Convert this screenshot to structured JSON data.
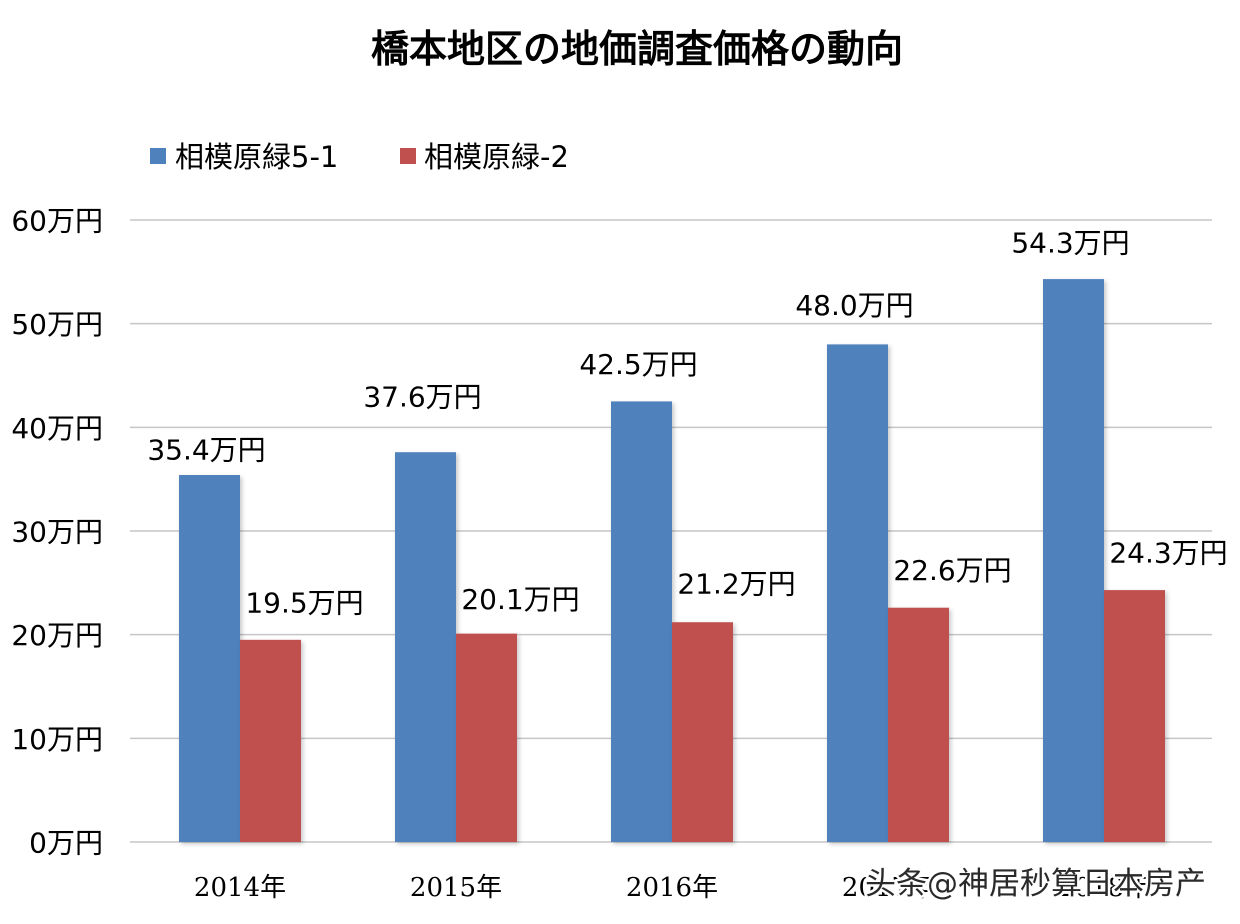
{
  "chart_data": {
    "type": "bar",
    "title": "橋本地区の地価調査価格の動向",
    "categories": [
      "2014年",
      "2015年",
      "2016年",
      "2017年",
      "2018年"
    ],
    "series": [
      {
        "name": "相模原緑5-1",
        "color": "#4F81BD",
        "values": [
          35.4,
          37.6,
          42.5,
          48.0,
          54.3
        ],
        "labels": [
          "35.4万円",
          "37.6万円",
          "42.5万円",
          "48.0万円",
          "54.3万円"
        ]
      },
      {
        "name": "相模原緑-2",
        "color": "#C0504D",
        "values": [
          19.5,
          20.1,
          21.2,
          22.6,
          24.3
        ],
        "labels": [
          "19.5万円",
          "20.1万円",
          "21.2万円",
          "22.6万円",
          "24.3万円"
        ]
      }
    ],
    "ylim": [
      0,
      60
    ],
    "yticks": [
      0,
      10,
      20,
      30,
      40,
      50,
      60
    ],
    "ytick_labels": [
      "0万円",
      "10万円",
      "20万円",
      "30万円",
      "40万円",
      "50万円",
      "60万円"
    ],
    "grid": true,
    "legend": "top-left"
  },
  "watermark": "头条@神居秒算日本房产"
}
